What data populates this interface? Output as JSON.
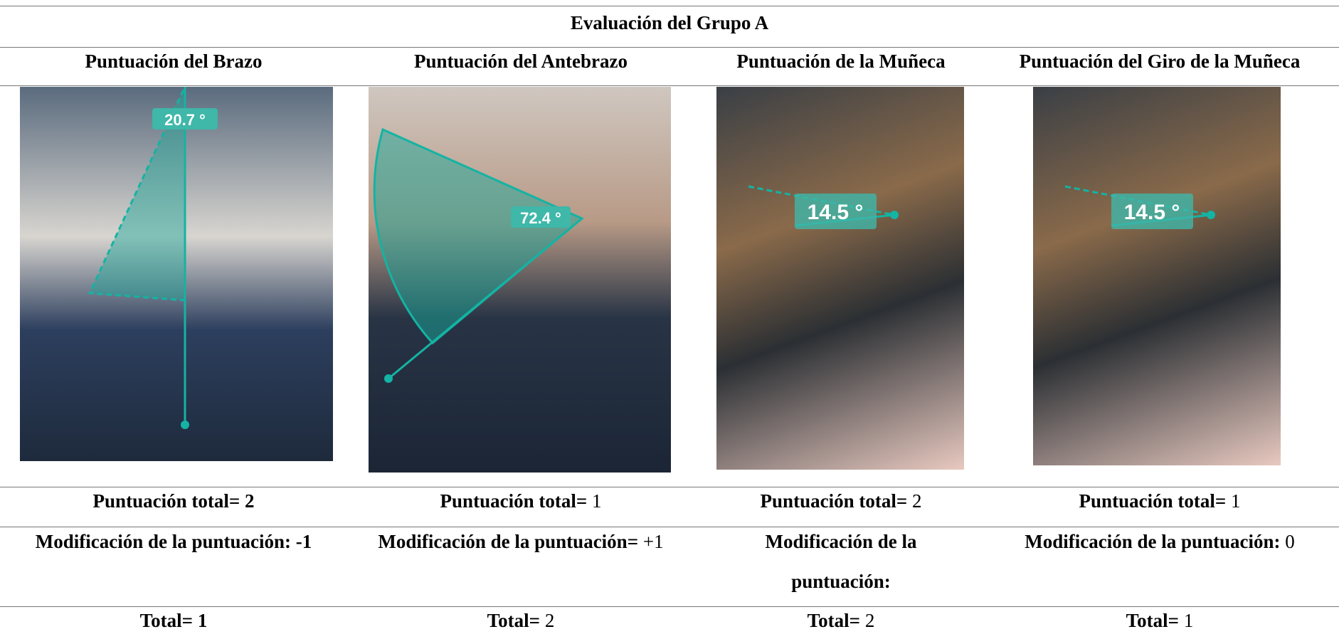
{
  "title": "Evaluación del Grupo A",
  "columns": [
    {
      "header": "Puntuación del Brazo",
      "angle_label": "20.7 °",
      "score_label": "Puntuación total=",
      "score": 2,
      "modification_label": "Modificación de la puntuación:",
      "modification": -1,
      "total_label": "Total=",
      "total": 1
    },
    {
      "header": "Puntuación del Antebrazo",
      "angle_label": "72.4 °",
      "score_label": "Puntuación total=",
      "score": 1,
      "modification_label": "Modificación de la puntuación=",
      "modification": "+1",
      "total_label": "Total=",
      "total": 2
    },
    {
      "header": "Puntuación de la Muñeca",
      "angle_label": "14.5 °",
      "score_label": "Puntuación total=",
      "score": 2,
      "modification_label": "Modificación de la puntuación:",
      "total_label": "Total=",
      "total": 2
    },
    {
      "header": "Puntuación del Giro de la Muñeca",
      "angle_label": "14.5 °",
      "score_label": "Puntuación total=",
      "score": 1,
      "modification_label": "Modificación de la puntuación:",
      "modification": 0,
      "total_label": "Total=",
      "total": 1
    }
  ]
}
